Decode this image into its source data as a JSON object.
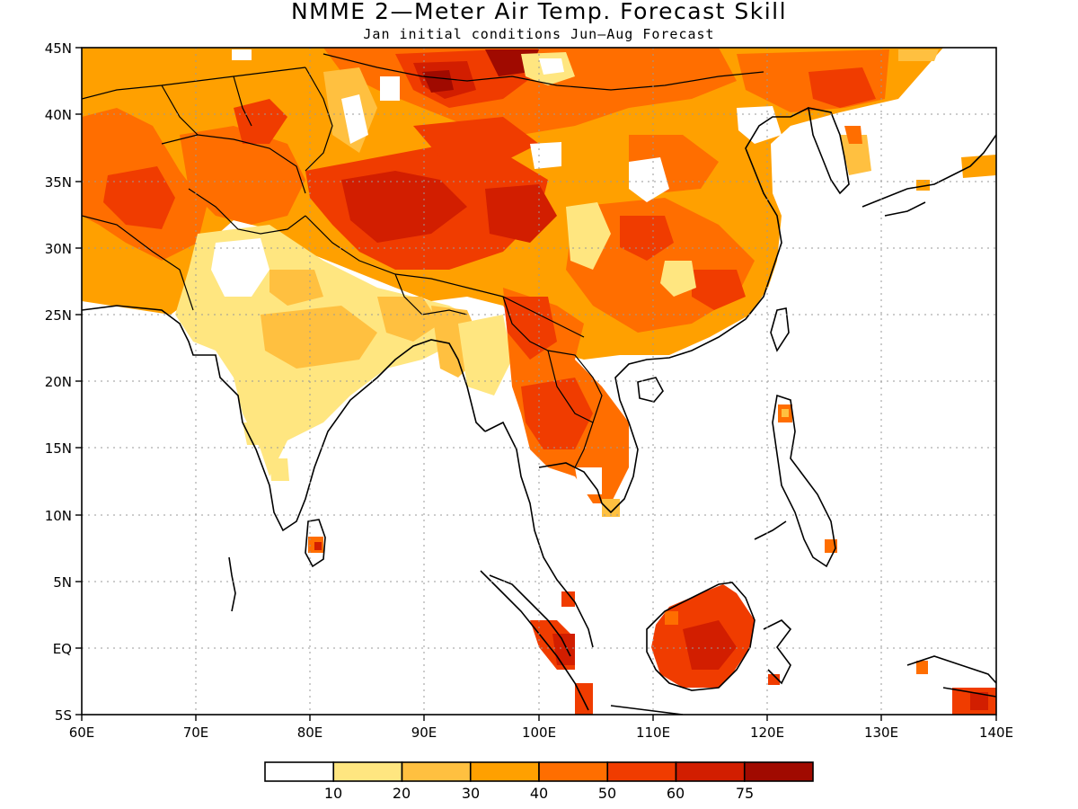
{
  "title": "NMME 2—Meter Air Temp. Forecast Skill",
  "subtitle": "Jan initial conditions  Jun—Aug Forecast",
  "map": {
    "lon_range": [
      60,
      140
    ],
    "lat_range": [
      -5,
      45
    ],
    "lon_ticks": [
      "60E",
      "70E",
      "80E",
      "90E",
      "100E",
      "110E",
      "120E",
      "130E",
      "140E"
    ],
    "lat_ticks": [
      "45N",
      "40N",
      "35N",
      "30N",
      "25N",
      "20N",
      "15N",
      "10N",
      "5N",
      "EQ",
      "5S"
    ],
    "grid_lines": "dotted"
  },
  "colorbar": {
    "labels": [
      "10",
      "20",
      "30",
      "40",
      "50",
      "60",
      "75"
    ],
    "colors": [
      "#ffffff",
      "#ffe680",
      "#ffc040",
      "#ffa000",
      "#ff6e00",
      "#f03c00",
      "#d21e00",
      "#a00a00"
    ]
  }
}
